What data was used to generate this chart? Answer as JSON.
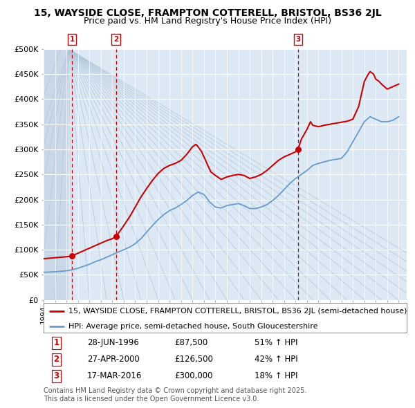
{
  "title": "15, WAYSIDE CLOSE, FRAMPTON COTTERELL, BRISTOL, BS36 2JL",
  "subtitle": "Price paid vs. HM Land Registry's House Price Index (HPI)",
  "legend_line1": "15, WAYSIDE CLOSE, FRAMPTON COTTERELL, BRISTOL, BS36 2JL (semi-detached house)",
  "legend_line2": "HPI: Average price, semi-detached house, South Gloucestershire",
  "footer": "Contains HM Land Registry data © Crown copyright and database right 2025.\nThis data is licensed under the Open Government Licence v3.0.",
  "sale_years": [
    1996.49,
    2000.32,
    2016.21
  ],
  "sale_prices": [
    87500,
    126500,
    300000
  ],
  "sale_labels": [
    "1",
    "2",
    "3"
  ],
  "sale_dates": [
    "28-JUN-1996",
    "27-APR-2000",
    "17-MAR-2016"
  ],
  "sale_price_str": [
    "£87,500",
    "£126,500",
    "£300,000"
  ],
  "sale_hpi": [
    "51% ↑ HPI",
    "42% ↑ HPI",
    "18% ↑ HPI"
  ],
  "ylim": [
    0,
    500000
  ],
  "ytick_vals": [
    0,
    50000,
    100000,
    150000,
    200000,
    250000,
    300000,
    350000,
    400000,
    450000,
    500000
  ],
  "xlim_start": 1994.0,
  "xlim_end": 2025.7,
  "bg_color": "#ffffff",
  "plot_bg": "#dce9f5",
  "hatch_bg": "#c8d8e8",
  "grid_color": "#ffffff",
  "red_color": "#cc0000",
  "blue_color": "#6699cc",
  "dashed_color": "#cc0000",
  "title_fs": 10,
  "subtitle_fs": 9,
  "tick_fs": 8,
  "legend_fs": 8,
  "table_fs": 8.5,
  "footer_fs": 7,
  "hpi_years": [
    1994.0,
    1994.5,
    1995.0,
    1995.5,
    1996.0,
    1996.5,
    1997.0,
    1997.5,
    1998.0,
    1998.5,
    1999.0,
    1999.5,
    2000.0,
    2000.5,
    2001.0,
    2001.5,
    2002.0,
    2002.5,
    2003.0,
    2003.5,
    2004.0,
    2004.5,
    2005.0,
    2005.5,
    2006.0,
    2006.5,
    2007.0,
    2007.5,
    2008.0,
    2008.5,
    2009.0,
    2009.5,
    2010.0,
    2010.5,
    2011.0,
    2011.5,
    2012.0,
    2012.5,
    2013.0,
    2013.5,
    2014.0,
    2014.5,
    2015.0,
    2015.5,
    2016.0,
    2016.5,
    2017.0,
    2017.5,
    2018.0,
    2018.5,
    2019.0,
    2019.5,
    2020.0,
    2020.5,
    2021.0,
    2021.5,
    2022.0,
    2022.5,
    2023.0,
    2023.5,
    2024.0,
    2024.5,
    2025.0
  ],
  "hpi_values": [
    55000,
    55500,
    56000,
    57000,
    58000,
    60000,
    63000,
    67000,
    71000,
    76000,
    80000,
    85000,
    90000,
    95000,
    100000,
    105000,
    112000,
    122000,
    135000,
    148000,
    160000,
    170000,
    178000,
    183000,
    190000,
    198000,
    208000,
    215000,
    210000,
    195000,
    185000,
    183000,
    188000,
    190000,
    192000,
    188000,
    182000,
    182000,
    185000,
    190000,
    198000,
    208000,
    220000,
    232000,
    242000,
    250000,
    258000,
    268000,
    272000,
    275000,
    278000,
    280000,
    282000,
    295000,
    315000,
    335000,
    355000,
    365000,
    360000,
    355000,
    355000,
    358000,
    365000
  ],
  "red_years": [
    1994.0,
    1994.5,
    1995.0,
    1995.5,
    1996.0,
    1996.49,
    1996.6,
    1997.0,
    1997.5,
    1998.0,
    1998.5,
    1999.0,
    1999.5,
    2000.0,
    2000.32,
    2000.6,
    2001.0,
    2001.5,
    2002.0,
    2002.5,
    2003.0,
    2003.5,
    2004.0,
    2004.5,
    2005.0,
    2005.5,
    2006.0,
    2006.5,
    2007.0,
    2007.3,
    2007.5,
    2007.8,
    2008.0,
    2008.3,
    2008.6,
    2009.0,
    2009.5,
    2010.0,
    2010.5,
    2011.0,
    2011.5,
    2012.0,
    2012.5,
    2013.0,
    2013.5,
    2014.0,
    2014.5,
    2015.0,
    2015.5,
    2016.0,
    2016.21,
    2016.5,
    2017.0,
    2017.3,
    2017.5,
    2018.0,
    2018.5,
    2019.0,
    2019.5,
    2020.0,
    2020.5,
    2021.0,
    2021.5,
    2022.0,
    2022.3,
    2022.5,
    2022.8,
    2023.0,
    2023.3,
    2023.5,
    2024.0,
    2024.5,
    2025.0
  ],
  "red_values": [
    82000,
    83000,
    84000,
    85000,
    86000,
    87500,
    89000,
    93000,
    98000,
    103000,
    108000,
    113000,
    118000,
    122000,
    126500,
    135000,
    148000,
    165000,
    185000,
    205000,
    222000,
    238000,
    252000,
    262000,
    268000,
    272000,
    278000,
    290000,
    305000,
    310000,
    305000,
    295000,
    285000,
    270000,
    255000,
    248000,
    240000,
    245000,
    248000,
    250000,
    248000,
    242000,
    245000,
    250000,
    258000,
    268000,
    278000,
    285000,
    290000,
    295000,
    300000,
    320000,
    340000,
    355000,
    348000,
    345000,
    348000,
    350000,
    352000,
    354000,
    356000,
    360000,
    385000,
    435000,
    448000,
    455000,
    450000,
    440000,
    435000,
    430000,
    420000,
    425000,
    430000
  ]
}
